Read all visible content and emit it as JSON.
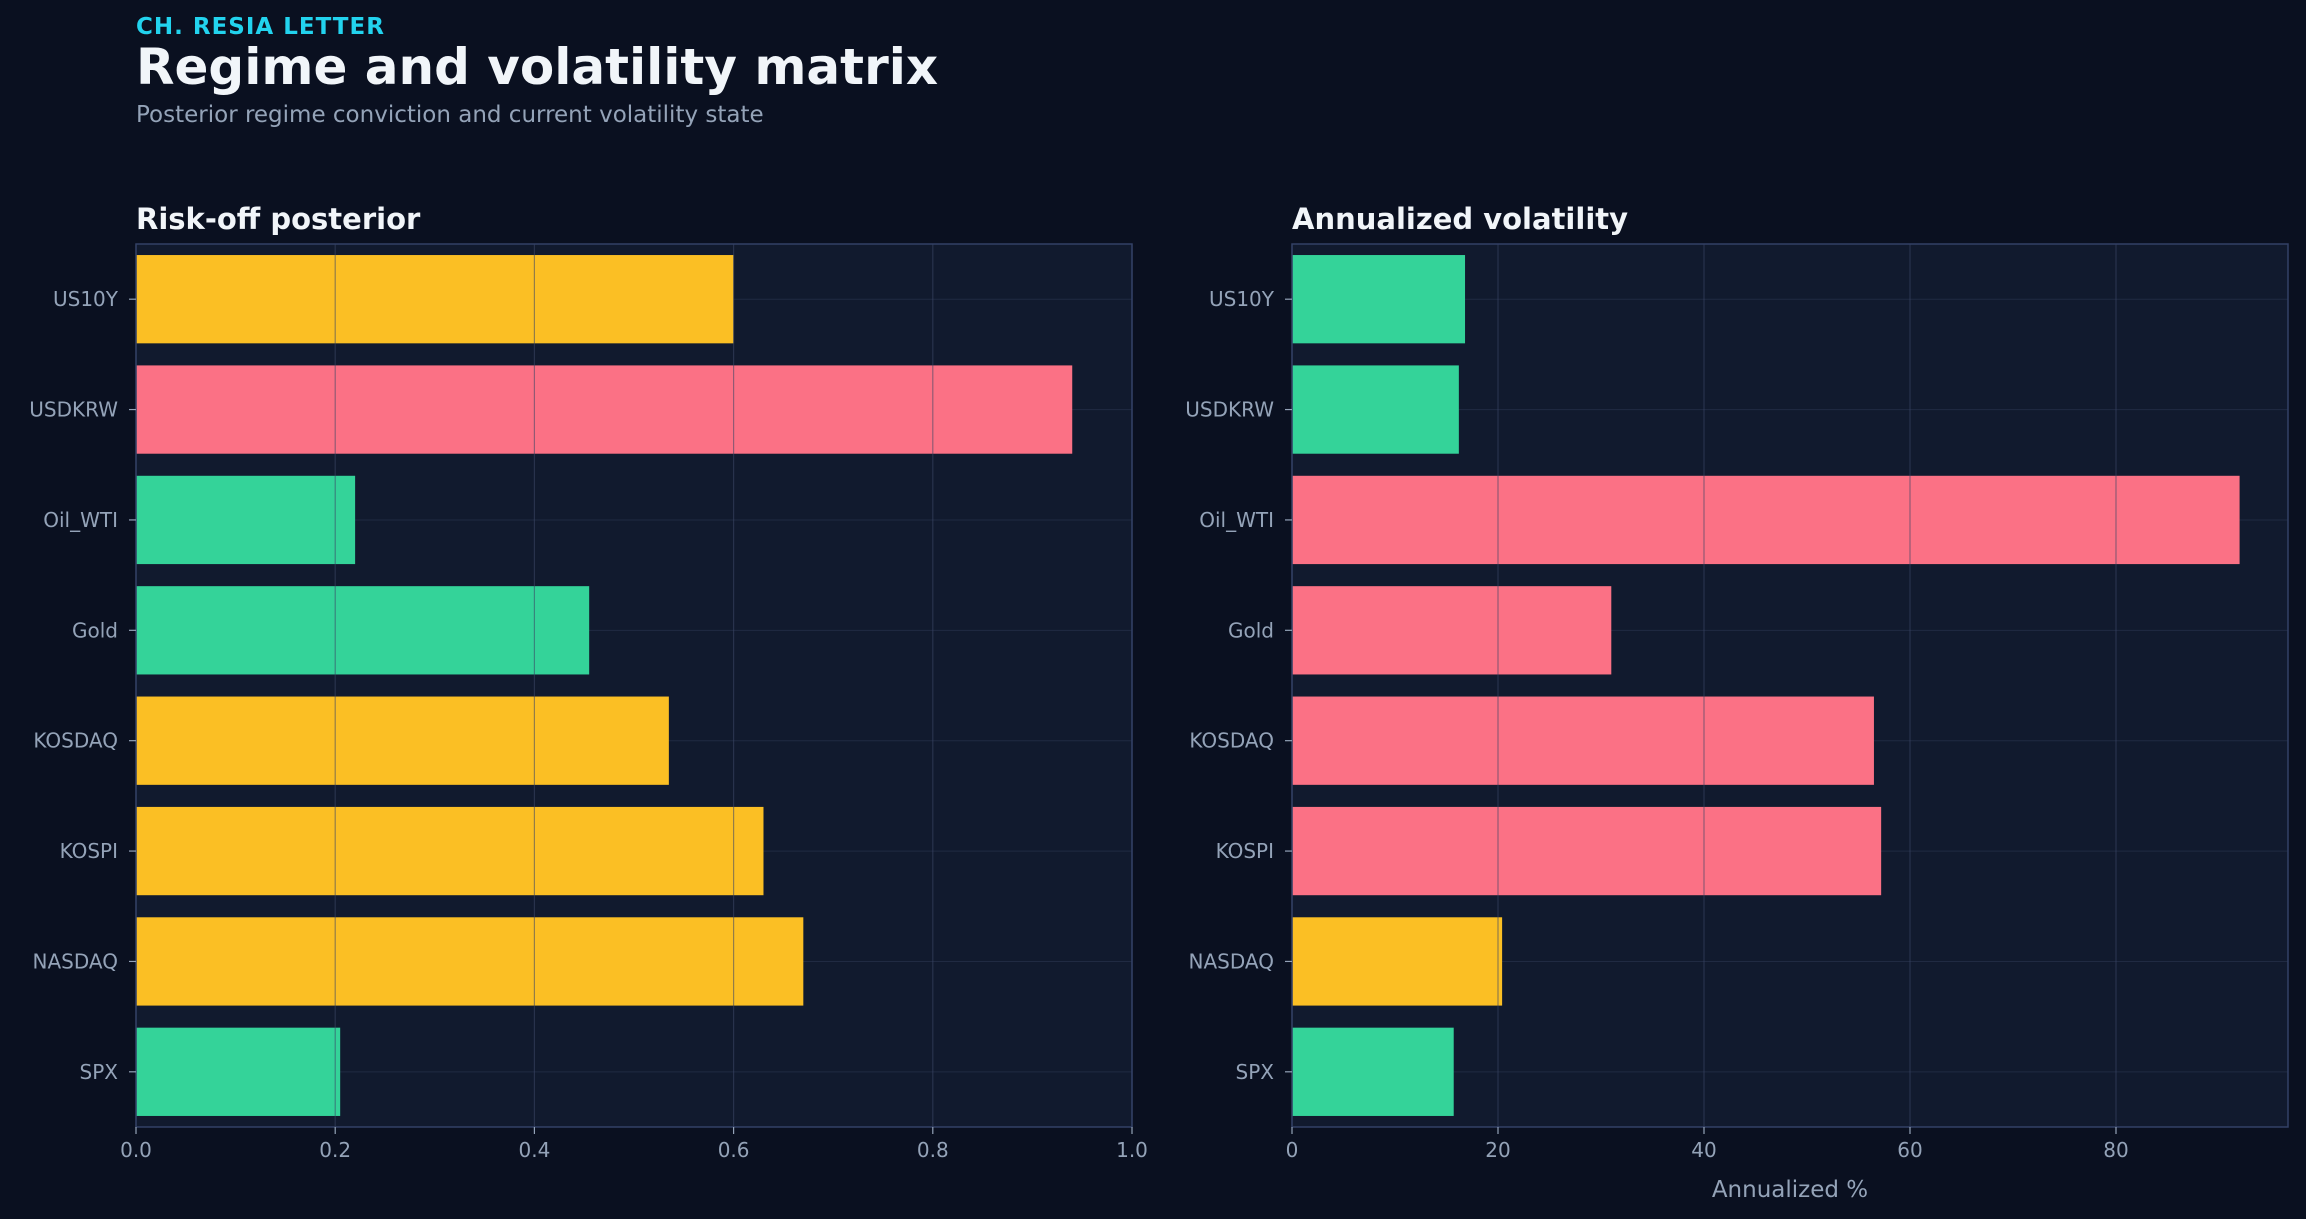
{
  "header": {
    "kicker": "CH. RESIA LETTER",
    "title": "Regime and volatility matrix",
    "subtitle": "Posterior regime conviction and current volatility state"
  },
  "colors": {
    "background": "#0a1020",
    "plot_background": "#111a2e",
    "plot_border": "#334166",
    "grid": "#2a3550",
    "text_muted": "#94a3b8",
    "text_strong": "#f1f5f9",
    "accent": "#22d3ee",
    "green": "#34d399",
    "amber": "#fbbf24",
    "red": "#fb7185"
  },
  "chart_data": [
    {
      "type": "bar",
      "orientation": "horizontal",
      "title": "Risk-off posterior",
      "xlabel": "",
      "categories": [
        "US10Y",
        "USDKRW",
        "Oil_WTI",
        "Gold",
        "KOSDAQ",
        "KOSPI",
        "NASDAQ",
        "SPX"
      ],
      "values": [
        0.6,
        0.94,
        0.22,
        0.455,
        0.535,
        0.63,
        0.67,
        0.205
      ],
      "bar_colors": [
        "#fbbf24",
        "#fb7185",
        "#34d399",
        "#34d399",
        "#fbbf24",
        "#fbbf24",
        "#fbbf24",
        "#34d399"
      ],
      "xlim": [
        0,
        1.0
      ],
      "xticks": [
        "0.0",
        "0.2",
        "0.4",
        "0.6",
        "0.8",
        "1.0"
      ],
      "xtick_values": [
        0,
        0.2,
        0.4,
        0.6,
        0.8,
        1.0
      ],
      "grid": true
    },
    {
      "type": "bar",
      "orientation": "horizontal",
      "title": "Annualized volatility",
      "xlabel": "Annualized %",
      "categories": [
        "US10Y",
        "USDKRW",
        "Oil_WTI",
        "Gold",
        "KOSDAQ",
        "KOSPI",
        "NASDAQ",
        "SPX"
      ],
      "values": [
        16.8,
        16.2,
        92.0,
        31.0,
        56.5,
        57.2,
        20.4,
        15.7
      ],
      "bar_colors": [
        "#34d399",
        "#34d399",
        "#fb7185",
        "#fb7185",
        "#fb7185",
        "#fb7185",
        "#fbbf24",
        "#34d399"
      ],
      "xlim": [
        0,
        96.7
      ],
      "xticks": [
        "0",
        "20",
        "40",
        "60",
        "80"
      ],
      "xtick_values": [
        0,
        20,
        40,
        60,
        80
      ],
      "grid": true
    }
  ]
}
